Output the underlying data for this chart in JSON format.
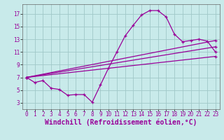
{
  "bg_color": "#c8eaea",
  "line_color": "#990099",
  "grid_color": "#a0c8c8",
  "xlabel": "Windchill (Refroidissement éolien,°C)",
  "xlabel_fontsize": 7,
  "xtick_fontsize": 5.5,
  "ytick_fontsize": 5.5,
  "xlim": [
    -0.5,
    23.5
  ],
  "ylim": [
    2,
    18.5
  ],
  "yticks": [
    3,
    5,
    7,
    9,
    11,
    13,
    15,
    17
  ],
  "xticks": [
    0,
    1,
    2,
    3,
    4,
    5,
    6,
    7,
    8,
    9,
    10,
    11,
    12,
    13,
    14,
    15,
    16,
    17,
    18,
    19,
    20,
    21,
    22,
    23
  ],
  "curve1_x": [
    0,
    1,
    2,
    3,
    4,
    5,
    6,
    7,
    8,
    9,
    10,
    11,
    12,
    13,
    14,
    15,
    16,
    17,
    18,
    19,
    20,
    21,
    22,
    23
  ],
  "curve1_y": [
    7.0,
    6.2,
    6.5,
    5.3,
    5.1,
    4.2,
    4.3,
    4.3,
    3.1,
    5.8,
    8.5,
    11.0,
    13.5,
    15.2,
    16.8,
    17.5,
    17.5,
    16.5,
    13.8,
    12.6,
    12.8,
    13.0,
    12.7,
    11.0
  ],
  "line1_x": [
    0,
    23
  ],
  "line1_y": [
    7.0,
    12.8
  ],
  "line2_x": [
    0,
    23
  ],
  "line2_y": [
    7.0,
    11.8
  ],
  "line3_x": [
    0,
    23
  ],
  "line3_y": [
    7.0,
    10.3
  ]
}
